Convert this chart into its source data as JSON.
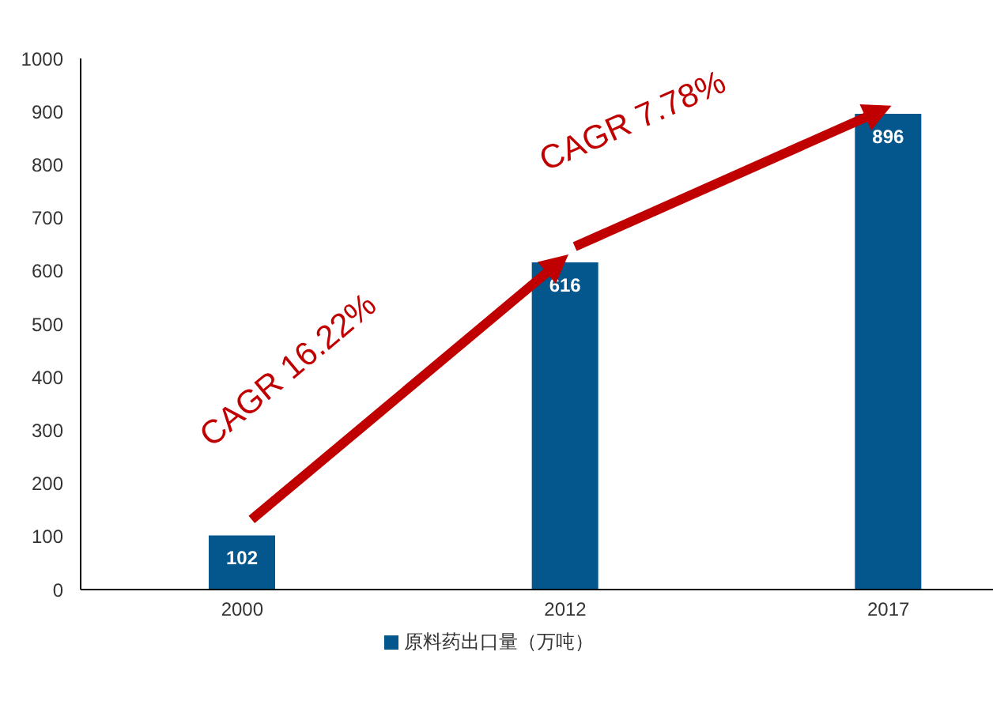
{
  "chart_data": {
    "type": "bar",
    "categories": [
      "2000",
      "2012",
      "2017"
    ],
    "series": [
      {
        "name": "原料药出口量（万吨）",
        "color": "#03578c",
        "values": [
          102,
          616,
          896
        ]
      }
    ],
    "ylim": [
      0,
      1000
    ],
    "yticks": [
      0,
      100,
      200,
      300,
      400,
      500,
      600,
      700,
      800,
      900,
      1000
    ],
    "legend": "bottom",
    "data_labels": true,
    "annotations": [
      "CAGR 16.22%",
      "CAGR 7.78%"
    ]
  }
}
